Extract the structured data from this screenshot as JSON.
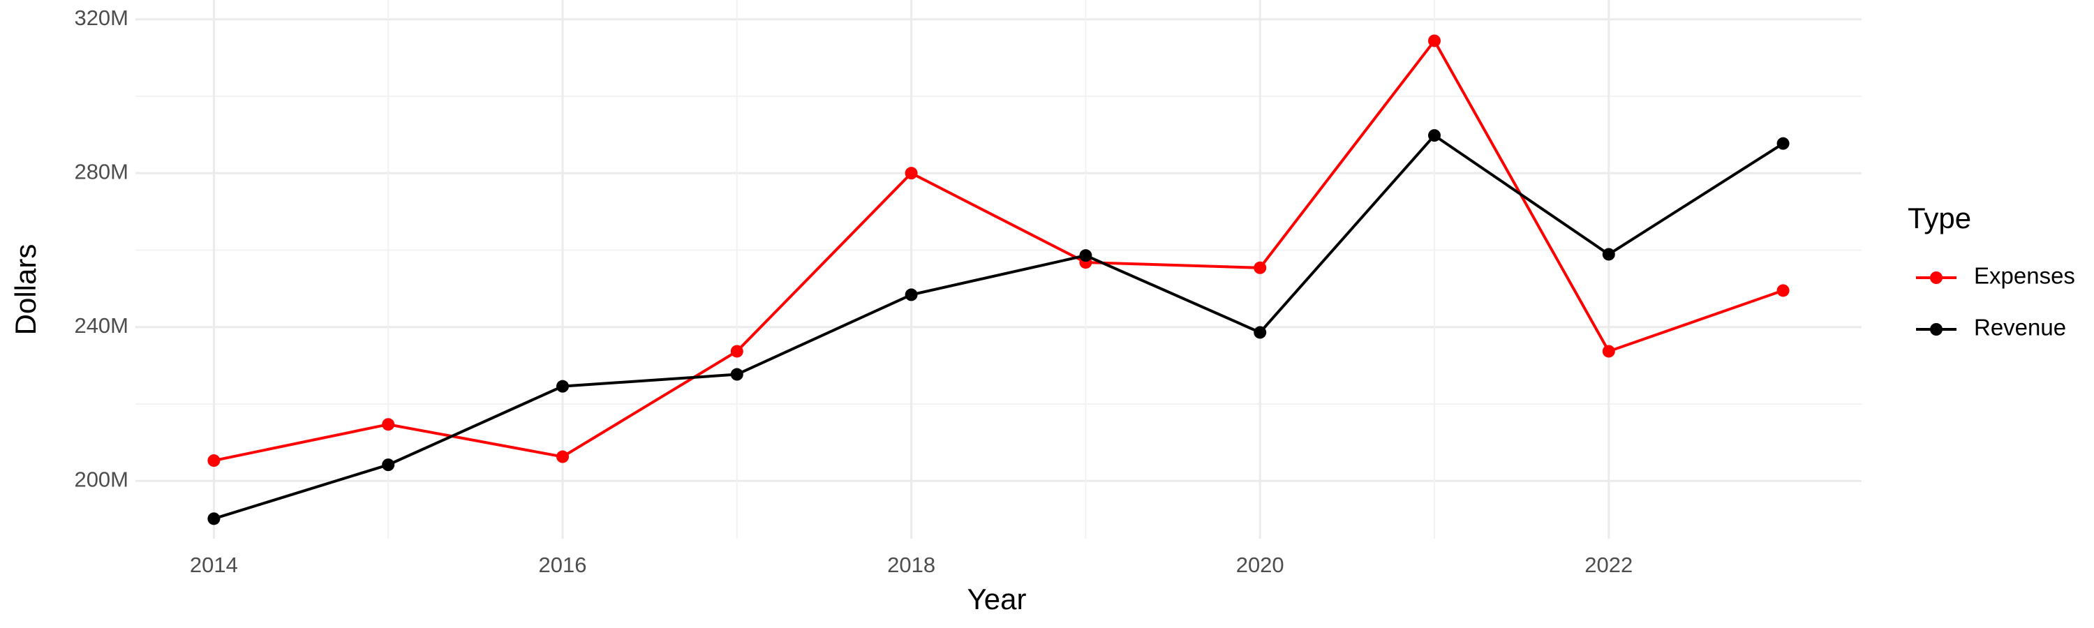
{
  "chart_data": {
    "type": "line",
    "x_label": "Year",
    "y_label": "Dollars",
    "legend_title": "Type",
    "x": [
      2014,
      2015,
      2016,
      2017,
      2018,
      2019,
      2020,
      2021,
      2022,
      2023
    ],
    "series": [
      {
        "name": "Expenses",
        "color": "#ff0000",
        "values": [
          205.3,
          214.7,
          206.3,
          233.7,
          280,
          256.8,
          255.4,
          314.4,
          233.7,
          249.5
        ]
      },
      {
        "name": "Revenue",
        "color": "#000000",
        "values": [
          190.2,
          204.2,
          224.6,
          227.7,
          248.4,
          258.6,
          238.6,
          289.8,
          258.9,
          287.7
        ]
      }
    ],
    "xlim": [
      2013.55,
      2023.45
    ],
    "xticks": [
      2014,
      2016,
      2018,
      2020,
      2022
    ],
    "ylim": [
      185,
      325
    ],
    "yticks": [
      {
        "value": 200,
        "label": "200M"
      },
      {
        "value": 240,
        "label": "240M"
      },
      {
        "value": 280,
        "label": "280M"
      },
      {
        "value": 320,
        "label": "320M"
      }
    ],
    "grid": true,
    "legend_position": "right"
  }
}
